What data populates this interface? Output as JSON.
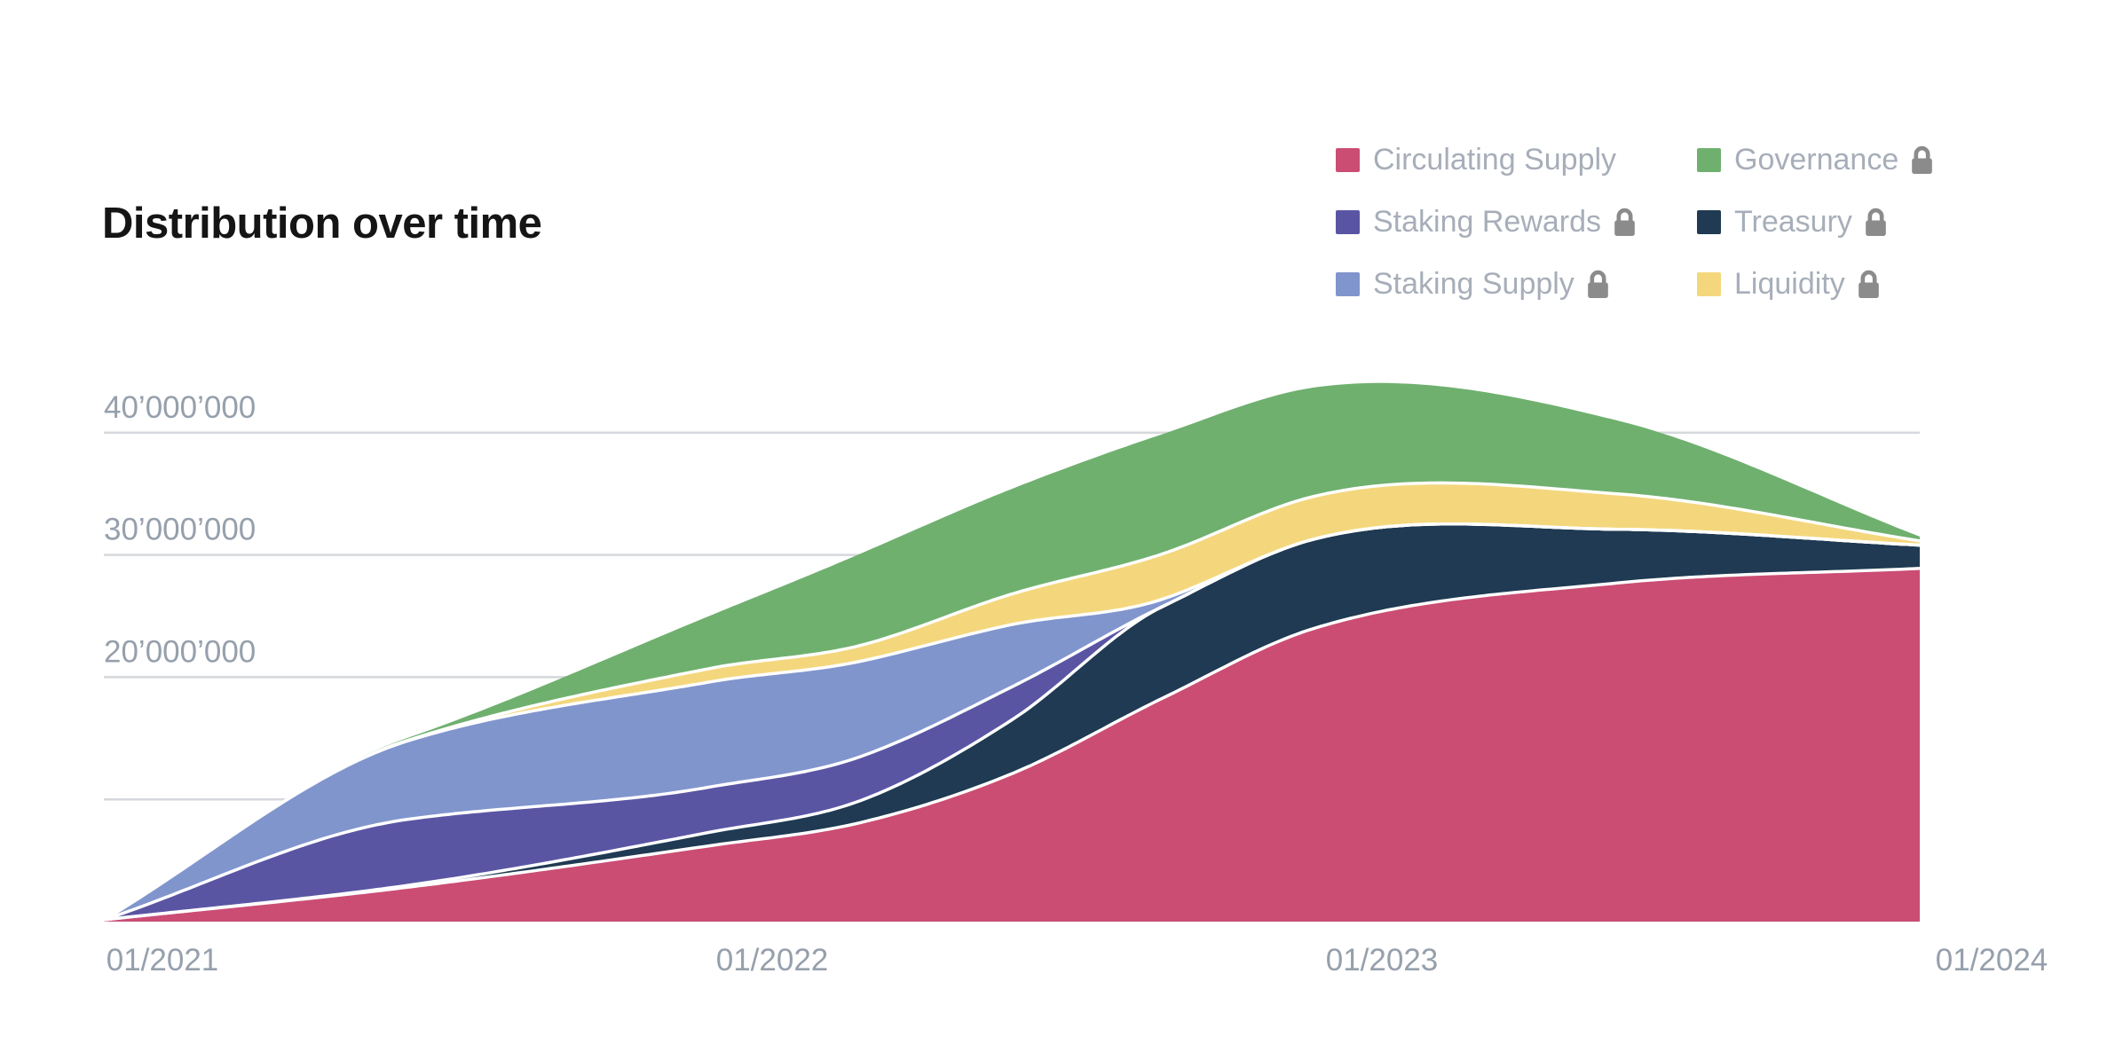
{
  "header": {
    "title": "Distribution over time"
  },
  "legend": {
    "text_color": "#a7aeb9",
    "lock_color": "#8b8b8b",
    "items": [
      {
        "label": "Circulating Supply",
        "color": "#cb4d74",
        "locked": false
      },
      {
        "label": "Staking Rewards",
        "color": "#5a55a3",
        "locked": true
      },
      {
        "label": "Staking Supply",
        "color": "#8195cd",
        "locked": true
      },
      {
        "label": "Governance",
        "color": "#6fb06f",
        "locked": true
      },
      {
        "label": "Treasury",
        "color": "#1f3a52",
        "locked": true
      },
      {
        "label": "Liquidity",
        "color": "#f4d77d",
        "locked": true
      }
    ]
  },
  "axis_style": {
    "grid_color": "#d5d8dc",
    "tick_label_color": "#96a0ac"
  },
  "chart_data": {
    "type": "area",
    "stacked": true,
    "title": "Distribution over time",
    "xlabel": "",
    "ylabel": "",
    "grid": true,
    "legend_position": "top-right",
    "x_unit": "years since 2021-01",
    "x_tick_labels": [
      "01/2021",
      "01/2022",
      "01/2023",
      "01/2024"
    ],
    "y_tick_labels": [
      {
        "value": 40,
        "label": "40’000’000"
      },
      {
        "value": 30,
        "label": "30’000’000"
      },
      {
        "value": 20,
        "label": "20’000’000"
      }
    ],
    "y_gridline_values_million": [
      40,
      30,
      20,
      10
    ],
    "ylim_million": [
      0,
      45
    ],
    "anchors_t": [
      0,
      0.5,
      1,
      1.25,
      1.5,
      1.75,
      2,
      2.5,
      3
    ],
    "series": [
      {
        "name": "Circulating Supply",
        "color": "#cb4d74",
        "locked": false,
        "values_million": [
          0.15,
          2.8,
          6.2,
          8.1,
          12.1,
          18.3,
          24.0,
          27.7,
          28.9
        ]
      },
      {
        "name": "Treasury",
        "color": "#1f3a52",
        "locked": true,
        "values_million": [
          0,
          0.15,
          1.1,
          1.8,
          4.4,
          7.5,
          7.3,
          4.4,
          1.9
        ]
      },
      {
        "name": "Staking Rewards",
        "color": "#5a55a3",
        "locked": true,
        "values_million": [
          0,
          5.4,
          3.7,
          3.6,
          2.7,
          0,
          0,
          0,
          0
        ]
      },
      {
        "name": "Staking Supply",
        "color": "#8195cd",
        "locked": true,
        "values_million": [
          0,
          6.4,
          8.6,
          7.8,
          5.1,
          0.6,
          0,
          0,
          0
        ]
      },
      {
        "name": "Liquidity",
        "color": "#f4d77d",
        "locked": true,
        "values_million": [
          0,
          0.05,
          1.1,
          1.3,
          2.5,
          3.7,
          3.5,
          2.9,
          0.35
        ]
      },
      {
        "name": "Governance",
        "color": "#6fb06f",
        "locked": true,
        "values_million": [
          0,
          0.2,
          4.3,
          7.5,
          8.6,
          9.8,
          8.9,
          6.0,
          0.35
        ]
      }
    ]
  }
}
